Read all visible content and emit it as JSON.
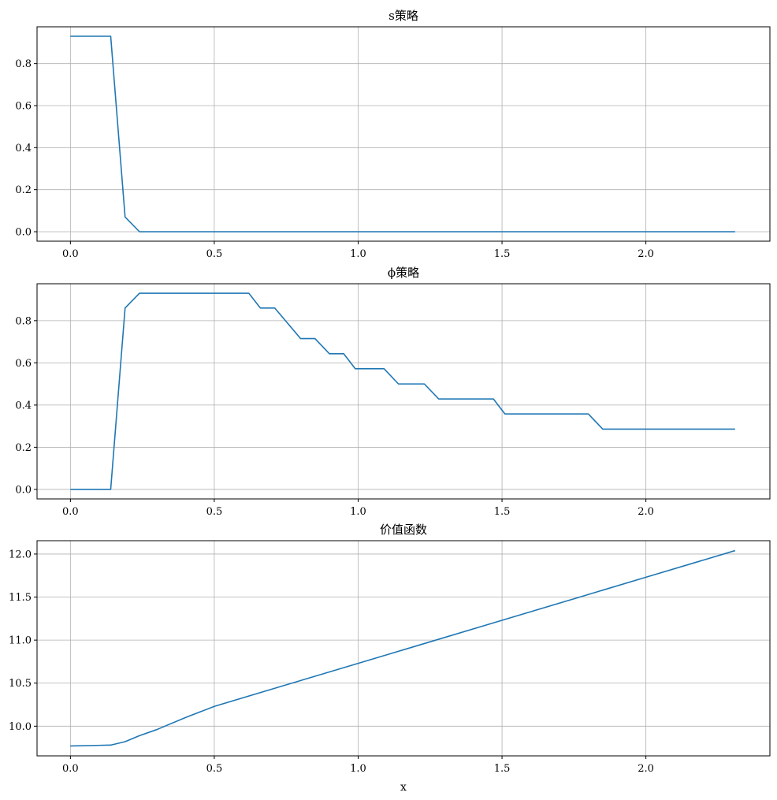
{
  "chart_data": [
    {
      "type": "line",
      "title": "s策略",
      "xlabel": "",
      "ylabel": "",
      "xlim": [
        -0.116,
        2.431
      ],
      "ylim": [
        -0.045,
        0.975
      ],
      "xticks": [
        0.0,
        0.5,
        1.0,
        1.5,
        2.0
      ],
      "xtick_labels": [
        "0.0",
        "0.5",
        "1.0",
        "1.5",
        "2.0"
      ],
      "yticks": [
        0.0,
        0.2,
        0.4,
        0.6,
        0.8
      ],
      "ytick_labels": [
        "0.0",
        "0.2",
        "0.4",
        "0.6",
        "0.8"
      ],
      "grid": true,
      "color": "#1f77b4",
      "series": [
        {
          "x": [
            0.0,
            0.14,
            0.19,
            0.24,
            2.31
          ],
          "y": [
            0.93,
            0.93,
            0.07,
            0.0,
            0.0
          ]
        }
      ]
    },
    {
      "type": "line",
      "title": "ϕ策略",
      "xlabel": "",
      "ylabel": "",
      "xlim": [
        -0.116,
        2.431
      ],
      "ylim": [
        -0.045,
        0.975
      ],
      "xticks": [
        0.0,
        0.5,
        1.0,
        1.5,
        2.0
      ],
      "xtick_labels": [
        "0.0",
        "0.5",
        "1.0",
        "1.5",
        "2.0"
      ],
      "yticks": [
        0.0,
        0.2,
        0.4,
        0.6,
        0.8
      ],
      "ytick_labels": [
        "0.0",
        "0.2",
        "0.4",
        "0.6",
        "0.8"
      ],
      "grid": true,
      "color": "#1f77b4",
      "series": [
        {
          "x": [
            0.0,
            0.14,
            0.19,
            0.24,
            0.62,
            0.66,
            0.71,
            0.8,
            0.85,
            0.9,
            0.95,
            0.99,
            1.09,
            1.14,
            1.23,
            1.28,
            1.47,
            1.51,
            1.8,
            1.85,
            2.31
          ],
          "y": [
            0.0,
            0.0,
            0.86,
            0.93,
            0.93,
            0.86,
            0.86,
            0.715,
            0.715,
            0.643,
            0.643,
            0.572,
            0.572,
            0.5,
            0.5,
            0.429,
            0.429,
            0.358,
            0.358,
            0.286,
            0.286
          ]
        }
      ]
    },
    {
      "type": "line",
      "title": "价值函数",
      "xlabel": "x",
      "ylabel": "",
      "xlim": [
        -0.116,
        2.431
      ],
      "ylim": [
        9.655,
        12.155
      ],
      "xticks": [
        0.0,
        0.5,
        1.0,
        1.5,
        2.0
      ],
      "xtick_labels": [
        "0.0",
        "0.5",
        "1.0",
        "1.5",
        "2.0"
      ],
      "yticks": [
        10.0,
        10.5,
        11.0,
        11.5,
        12.0
      ],
      "ytick_labels": [
        "10.0",
        "10.5",
        "11.0",
        "11.5",
        "12.0"
      ],
      "grid": true,
      "color": "#1f77b4",
      "series": [
        {
          "x": [
            0.0,
            0.14,
            0.19,
            0.24,
            0.3,
            0.4,
            0.5,
            0.75,
            1.0,
            1.25,
            1.5,
            1.75,
            2.0,
            2.31
          ],
          "y": [
            9.77,
            9.78,
            9.82,
            9.89,
            9.96,
            10.1,
            10.23,
            10.48,
            10.73,
            10.98,
            11.23,
            11.48,
            11.73,
            12.04
          ]
        }
      ]
    }
  ]
}
